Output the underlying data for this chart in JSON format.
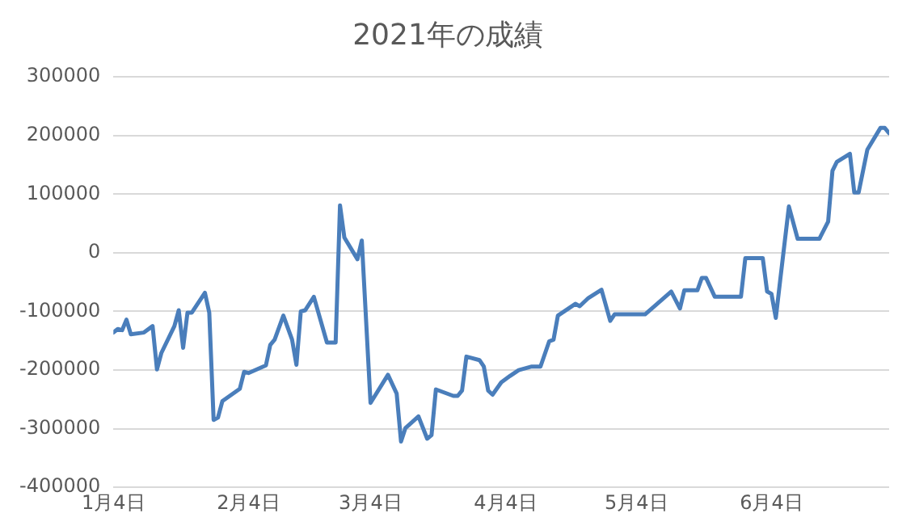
{
  "chart_data": {
    "type": "line",
    "title": "2021年の成績",
    "x": [
      "2021-01-04",
      "2021-01-05",
      "2021-01-06",
      "2021-01-07",
      "2021-01-08",
      "2021-01-11",
      "2021-01-13",
      "2021-01-14",
      "2021-01-15",
      "2021-01-18",
      "2021-01-19",
      "2021-01-20",
      "2021-01-21",
      "2021-01-22",
      "2021-01-25",
      "2021-01-26",
      "2021-01-27",
      "2021-01-28",
      "2021-01-29",
      "2021-02-02",
      "2021-02-03",
      "2021-02-04",
      "2021-02-08",
      "2021-02-09",
      "2021-02-10",
      "2021-02-12",
      "2021-02-14",
      "2021-02-15",
      "2021-02-16",
      "2021-02-17",
      "2021-02-19",
      "2021-02-22",
      "2021-02-24",
      "2021-02-25",
      "2021-02-26",
      "2021-03-01",
      "2021-03-02",
      "2021-03-04",
      "2021-03-08",
      "2021-03-10",
      "2021-03-11",
      "2021-03-12",
      "2021-03-15",
      "2021-03-17",
      "2021-03-18",
      "2021-03-19",
      "2021-03-23",
      "2021-03-24",
      "2021-03-25",
      "2021-03-26",
      "2021-03-29",
      "2021-03-30",
      "2021-03-31",
      "2021-04-01",
      "2021-04-03",
      "2021-04-05",
      "2021-04-07",
      "2021-04-08",
      "2021-04-10",
      "2021-04-12",
      "2021-04-14",
      "2021-04-15",
      "2021-04-16",
      "2021-04-20",
      "2021-04-21",
      "2021-04-23",
      "2021-04-26",
      "2021-04-28",
      "2021-04-29",
      "2021-05-06",
      "2021-05-12",
      "2021-05-14",
      "2021-05-15",
      "2021-05-18",
      "2021-05-19",
      "2021-05-20",
      "2021-05-22",
      "2021-05-28",
      "2021-05-29",
      "2021-06-02",
      "2021-06-03",
      "2021-06-04",
      "2021-06-05",
      "2021-06-06",
      "2021-06-08",
      "2021-06-10",
      "2021-06-15",
      "2021-06-17",
      "2021-06-18",
      "2021-06-19",
      "2021-06-22",
      "2021-06-23",
      "2021-06-24",
      "2021-06-26",
      "2021-06-29",
      "2021-06-30",
      "2021-07-01"
    ],
    "series": [
      {
        "color": "#4a7ebb",
        "values": [
          -136000,
          -130000,
          -132000,
          -114000,
          -139000,
          -136000,
          -125000,
          -199000,
          -171000,
          -125000,
          -98000,
          -162000,
          -102000,
          -102000,
          -68000,
          -102000,
          -285000,
          -281000,
          -253000,
          -232000,
          -203000,
          -205000,
          -192000,
          -157000,
          -148000,
          -107000,
          -148000,
          -191000,
          -100000,
          -98000,
          -75000,
          -153000,
          -153000,
          81000,
          26000,
          -11000,
          21000,
          -256000,
          -208000,
          -240000,
          -322000,
          -299000,
          -279000,
          -317000,
          -311000,
          -233000,
          -244000,
          -244000,
          -235000,
          -177000,
          -183000,
          -194000,
          -235000,
          -242000,
          -221000,
          -210000,
          -200000,
          -198000,
          -194000,
          -194000,
          -151000,
          -148000,
          -107000,
          -87000,
          -91000,
          -77000,
          -63000,
          -116000,
          -105000,
          -105000,
          -66000,
          -95000,
          -64000,
          -64000,
          -43000,
          -43000,
          -75000,
          -75000,
          -9000,
          -9000,
          -66000,
          -70000,
          -111000,
          -47000,
          79000,
          24000,
          24000,
          53000,
          140000,
          155000,
          169000,
          103000,
          103000,
          176000,
          213000,
          213000,
          204000
        ]
      }
    ],
    "xlim": [
      "2021-01-04",
      "2021-07-01"
    ],
    "xticks": [
      {
        "value": "2021-01-04",
        "label": "1月4日"
      },
      {
        "value": "2021-02-04",
        "label": "2月4日"
      },
      {
        "value": "2021-03-04",
        "label": "3月4日"
      },
      {
        "value": "2021-04-04",
        "label": "4月4日"
      },
      {
        "value": "2021-05-04",
        "label": "5月4日"
      },
      {
        "value": "2021-06-04",
        "label": "6月4日"
      }
    ],
    "ylim": [
      -400000,
      300000
    ],
    "yticks": [
      -400000,
      -300000,
      -200000,
      -100000,
      0,
      100000,
      200000,
      300000
    ],
    "grid": "y",
    "legend": false,
    "marker": "none",
    "line_style": "solid"
  }
}
